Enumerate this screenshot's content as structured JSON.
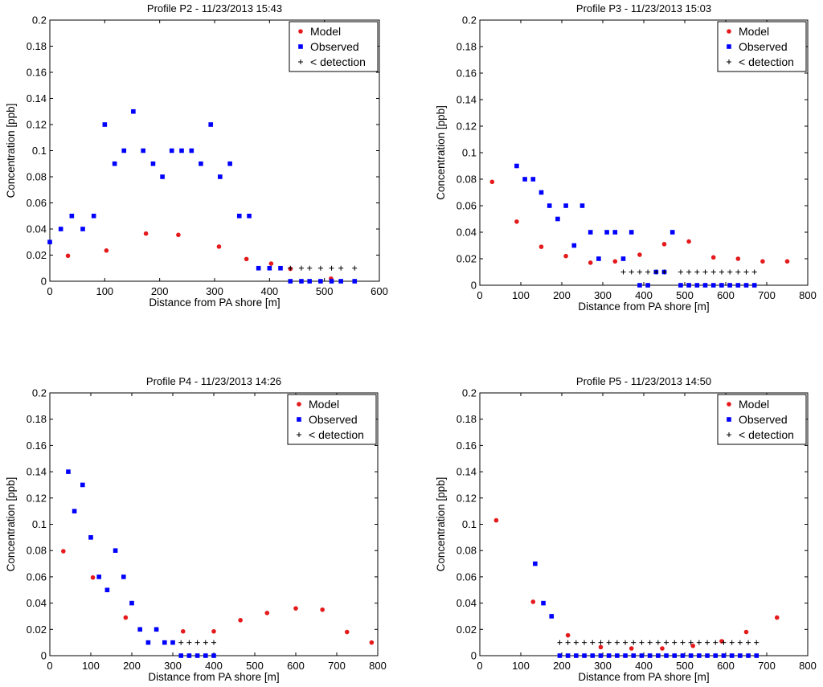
{
  "colors": {
    "model": "#e41a1c",
    "observed": "#0000ff",
    "detection": "#000000",
    "axis": "#000000"
  },
  "legend_labels": {
    "model": "Model",
    "observed": "Observed",
    "detection": "< detection"
  },
  "chart_data": [
    {
      "type": "scatter",
      "title": "Profile P2 - 11/23/2013 15:43",
      "xlabel": "Distance from PA shore [m]",
      "ylabel": "Concentration [ppb]",
      "xlim": [
        0,
        600
      ],
      "ylim": [
        0,
        0.2
      ],
      "xticks": [
        0,
        100,
        200,
        300,
        400,
        500,
        600
      ],
      "yticks": [
        0,
        0.02,
        0.04,
        0.06,
        0.08,
        0.1,
        0.12,
        0.14,
        0.16,
        0.18,
        0.2
      ],
      "tick_labels_x": [
        "0",
        "100",
        "200",
        "300",
        "400",
        "500",
        "600"
      ],
      "tick_labels_y": [
        "0",
        "0.02",
        "0.04",
        "0.06",
        "0.08",
        "0.1",
        "0.12",
        "0.14",
        "0.16",
        "0.18",
        "0.2"
      ],
      "legend": "top-right",
      "series": [
        {
          "name": "Model",
          "marker": "dot",
          "x": [
            33,
            103,
            175,
            234,
            308,
            358,
            403,
            438,
            512
          ],
          "y": [
            0.0195,
            0.0235,
            0.0365,
            0.0355,
            0.0265,
            0.017,
            0.0135,
            0.0095,
            0.002
          ]
        },
        {
          "name": "Observed",
          "marker": "square",
          "x": [
            0,
            20,
            40,
            60,
            80,
            100,
            118,
            135,
            152,
            170,
            188,
            205,
            222,
            240,
            258,
            275,
            293,
            310,
            328,
            345,
            363,
            380,
            400,
            420,
            438,
            458,
            473,
            493,
            513,
            530,
            555
          ],
          "y": [
            0.03,
            0.04,
            0.05,
            0.04,
            0.05,
            0.12,
            0.09,
            0.1,
            0.13,
            0.1,
            0.09,
            0.08,
            0.1,
            0.1,
            0.1,
            0.09,
            0.12,
            0.08,
            0.09,
            0.05,
            0.05,
            0.01,
            0.01,
            0.01,
            0.0,
            0.0,
            0.0,
            0.0,
            0.0,
            0.0,
            0.0
          ]
        },
        {
          "name": "< detection",
          "marker": "plus",
          "x": [
            438,
            458,
            473,
            493,
            513,
            530,
            555
          ],
          "y": [
            0.01,
            0.01,
            0.01,
            0.01,
            0.01,
            0.01,
            0.01
          ]
        }
      ]
    },
    {
      "type": "scatter",
      "title": "Profile P3 - 11/23/2013 15:03",
      "xlabel": "Distance from PA shore [m]",
      "ylabel": "Concentration [ppb]",
      "xlim": [
        0,
        800
      ],
      "ylim": [
        0,
        0.2
      ],
      "xticks": [
        0,
        100,
        200,
        300,
        400,
        500,
        600,
        700,
        800
      ],
      "yticks": [
        0,
        0.02,
        0.04,
        0.06,
        0.08,
        0.1,
        0.12,
        0.14,
        0.16,
        0.18,
        0.2
      ],
      "tick_labels_x": [
        "0",
        "100",
        "200",
        "300",
        "400",
        "500",
        "600",
        "700",
        "800"
      ],
      "tick_labels_y": [
        "0",
        "0.02",
        "0.04",
        "0.06",
        "0.08",
        "0.1",
        "0.12",
        "0.14",
        "0.16",
        "0.18",
        "0.2"
      ],
      "legend": "top-right",
      "series": [
        {
          "name": "Model",
          "marker": "dot",
          "x": [
            30,
            90,
            150,
            210,
            270,
            330,
            390,
            450,
            510,
            570,
            630,
            690,
            750
          ],
          "y": [
            0.078,
            0.048,
            0.029,
            0.022,
            0.017,
            0.018,
            0.023,
            0.031,
            0.033,
            0.021,
            0.02,
            0.018,
            0.018
          ]
        },
        {
          "name": "Observed",
          "marker": "square",
          "x": [
            90,
            110,
            130,
            150,
            170,
            190,
            210,
            230,
            250,
            270,
            290,
            310,
            330,
            350,
            370,
            390,
            410,
            430,
            450,
            470,
            490,
            510,
            530,
            550,
            570,
            590,
            610,
            630,
            650,
            670
          ],
          "y": [
            0.09,
            0.08,
            0.08,
            0.07,
            0.06,
            0.05,
            0.06,
            0.03,
            0.06,
            0.04,
            0.02,
            0.04,
            0.04,
            0.02,
            0.04,
            0.0,
            0.0,
            0.01,
            0.01,
            0.04,
            0.0,
            0.0,
            0.0,
            0.0,
            0.0,
            0.0,
            0.0,
            0.0,
            0.0,
            0.0
          ]
        },
        {
          "name": "< detection",
          "marker": "plus",
          "x": [
            350,
            370,
            390,
            410,
            430,
            450,
            490,
            510,
            530,
            550,
            570,
            590,
            610,
            630,
            650,
            670
          ],
          "y": [
            0.01,
            0.01,
            0.01,
            0.01,
            0.01,
            0.01,
            0.01,
            0.01,
            0.01,
            0.01,
            0.01,
            0.01,
            0.01,
            0.01,
            0.01,
            0.01
          ]
        }
      ]
    },
    {
      "type": "scatter",
      "title": "Profile P4 - 11/23/2013 14:26",
      "xlabel": "Distance from PA shore [m]",
      "ylabel": "Concentration [ppb]",
      "xlim": [
        0,
        800
      ],
      "ylim": [
        0,
        0.2
      ],
      "xticks": [
        0,
        100,
        200,
        300,
        400,
        500,
        600,
        700,
        800
      ],
      "yticks": [
        0,
        0.02,
        0.04,
        0.06,
        0.08,
        0.1,
        0.12,
        0.14,
        0.16,
        0.18,
        0.2
      ],
      "tick_labels_x": [
        "0",
        "100",
        "200",
        "300",
        "400",
        "500",
        "600",
        "700",
        "800"
      ],
      "tick_labels_y": [
        "0",
        "0.02",
        "0.04",
        "0.06",
        "0.08",
        "0.1",
        "0.12",
        "0.14",
        "0.16",
        "0.18",
        "0.2"
      ],
      "legend": "top-right",
      "series": [
        {
          "name": "Model",
          "marker": "dot",
          "x": [
            33,
            105,
            185,
            325,
            400,
            465,
            530,
            600,
            665,
            725,
            785
          ],
          "y": [
            0.0795,
            0.0595,
            0.029,
            0.0185,
            0.0185,
            0.027,
            0.0325,
            0.036,
            0.035,
            0.018,
            0.01
          ]
        },
        {
          "name": "Observed",
          "marker": "square",
          "x": [
            45,
            60,
            80,
            100,
            120,
            140,
            160,
            180,
            200,
            220,
            240,
            260,
            280,
            300,
            320,
            340,
            360,
            380,
            400
          ],
          "y": [
            0.14,
            0.11,
            0.13,
            0.09,
            0.06,
            0.05,
            0.08,
            0.06,
            0.04,
            0.02,
            0.01,
            0.02,
            0.01,
            0.01,
            0.0,
            0.0,
            0.0,
            0.0,
            0.0
          ]
        },
        {
          "name": "< detection",
          "marker": "plus",
          "x": [
            320,
            340,
            360,
            380,
            400
          ],
          "y": [
            0.01,
            0.01,
            0.01,
            0.01,
            0.01
          ]
        }
      ]
    },
    {
      "type": "scatter",
      "title": "Profile P5 - 11/23/2013 14:50",
      "xlabel": "Distance from PA shore [m]",
      "ylabel": "Concentration [ppb]",
      "xlim": [
        0,
        800
      ],
      "ylim": [
        0,
        0.2
      ],
      "xticks": [
        0,
        100,
        200,
        300,
        400,
        500,
        600,
        700,
        800
      ],
      "yticks": [
        0,
        0.02,
        0.04,
        0.06,
        0.08,
        0.1,
        0.12,
        0.14,
        0.16,
        0.18,
        0.2
      ],
      "tick_labels_x": [
        "0",
        "100",
        "200",
        "300",
        "400",
        "500",
        "600",
        "700",
        "800"
      ],
      "tick_labels_y": [
        "0",
        "0.02",
        "0.04",
        "0.06",
        "0.08",
        "0.1",
        "0.12",
        "0.14",
        "0.16",
        "0.18",
        "0.2"
      ],
      "legend": "top-right",
      "series": [
        {
          "name": "Model",
          "marker": "dot",
          "x": [
            40,
            130,
            215,
            295,
            370,
            445,
            520,
            590,
            650,
            725
          ],
          "y": [
            0.103,
            0.041,
            0.0155,
            0.0065,
            0.0055,
            0.0055,
            0.0075,
            0.011,
            0.018,
            0.029
          ]
        },
        {
          "name": "Observed",
          "marker": "square",
          "x": [
            135,
            155,
            175,
            195,
            215,
            235,
            255,
            275,
            295,
            315,
            335,
            355,
            375,
            395,
            415,
            435,
            455,
            475,
            495,
            515,
            535,
            555,
            575,
            595,
            615,
            635,
            655,
            675
          ],
          "y": [
            0.07,
            0.04,
            0.03,
            0.0,
            0.0,
            0.0,
            0.0,
            0.0,
            0.0,
            0.0,
            0.0,
            0.0,
            0.0,
            0.0,
            0.0,
            0.0,
            0.0,
            0.0,
            0.0,
            0.0,
            0.0,
            0.0,
            0.0,
            0.0,
            0.0,
            0.0,
            0.0,
            0.0
          ]
        },
        {
          "name": "< detection",
          "marker": "plus",
          "x": [
            195,
            215,
            235,
            255,
            275,
            295,
            315,
            335,
            355,
            375,
            395,
            415,
            435,
            455,
            475,
            495,
            515,
            535,
            555,
            575,
            595,
            615,
            635,
            655,
            675
          ],
          "y": [
            0.01,
            0.01,
            0.01,
            0.01,
            0.01,
            0.01,
            0.01,
            0.01,
            0.01,
            0.01,
            0.01,
            0.01,
            0.01,
            0.01,
            0.01,
            0.01,
            0.01,
            0.01,
            0.01,
            0.01,
            0.01,
            0.01,
            0.01,
            0.01,
            0.01
          ]
        }
      ]
    }
  ]
}
